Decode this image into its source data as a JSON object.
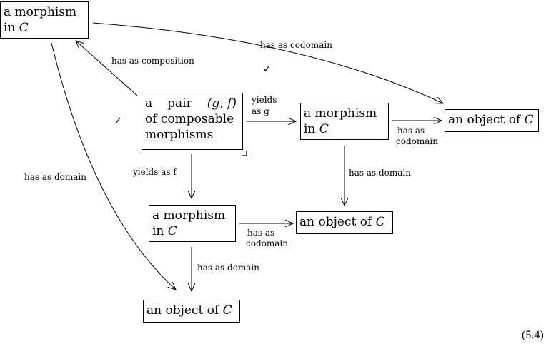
{
  "nodes": {
    "morphism_top": {
      "line1": "a morphism",
      "line2_prefix": "in ",
      "line2_cat": "C"
    },
    "pair": {
      "line1_a": "a",
      "line1_b": "pair",
      "line1_c": "(g, f)",
      "line2": "of composable",
      "line3": "morphisms"
    },
    "morphism_right": {
      "line1": "a morphism",
      "line2_prefix": "in ",
      "line2_cat": "C"
    },
    "object_right": {
      "prefix": "an object of ",
      "cat": "C"
    },
    "morphism_mid": {
      "line1": "a morphism",
      "line2_prefix": "in ",
      "line2_cat": "C"
    },
    "object_mid": {
      "prefix": "an object of ",
      "cat": "C"
    },
    "object_bottom": {
      "prefix": "an object of ",
      "cat": "C"
    }
  },
  "arrows": {
    "top_codomain": "has as codomain",
    "composition": "has as composition",
    "yields_g_line1": "yields",
    "yields_g_line2": "as g",
    "right_codomain_line1": "has as",
    "right_codomain_line2": "codomain",
    "right_domain": "has as domain",
    "yields_f": "yields as f",
    "mid_codomain_line1": "has as",
    "mid_codomain_line2": "codomain",
    "mid_domain": "has as domain",
    "top_domain": "has as domain"
  },
  "marks": {
    "check_top": "✓",
    "check_left": "✓",
    "pullback": "⌟"
  },
  "equation_number": "(5.4)"
}
